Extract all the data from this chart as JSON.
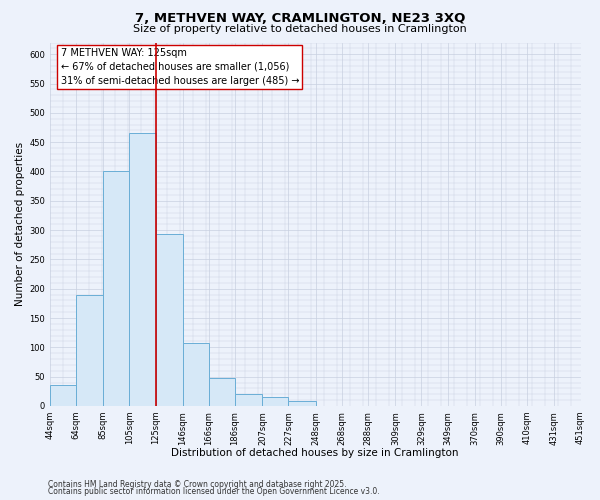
{
  "title_line1": "7, METHVEN WAY, CRAMLINGTON, NE23 3XQ",
  "title_line2": "Size of property relative to detached houses in Cramlington",
  "xlabel": "Distribution of detached houses by size in Cramlington",
  "ylabel": "Number of detached properties",
  "bin_edges": [
    44,
    64,
    85,
    105,
    125,
    146,
    166,
    186,
    207,
    227,
    248,
    268,
    288,
    309,
    329,
    349,
    370,
    390,
    410,
    431,
    451
  ],
  "bar_heights": [
    35,
    190,
    400,
    465,
    293,
    107,
    48,
    20,
    15,
    8,
    0,
    0,
    0,
    0,
    0,
    0,
    0,
    0,
    0,
    0
  ],
  "bar_color": "#d6e8f7",
  "bar_edge_color": "#6aaed6",
  "vline_x": 125,
  "vline_color": "#cc0000",
  "ylim": [
    0,
    620
  ],
  "yticks": [
    0,
    50,
    100,
    150,
    200,
    250,
    300,
    350,
    400,
    450,
    500,
    550,
    600
  ],
  "annotation_title": "7 METHVEN WAY: 125sqm",
  "annotation_line1": "← 67% of detached houses are smaller (1,056)",
  "annotation_line2": "31% of semi-detached houses are larger (485) →",
  "annotation_box_color": "#ffffff",
  "annotation_box_edge": "#cc0000",
  "background_color": "#edf2fb",
  "grid_color": "#c8d0e0",
  "footer_line1": "Contains HM Land Registry data © Crown copyright and database right 2025.",
  "footer_line2": "Contains public sector information licensed under the Open Government Licence v3.0.",
  "tick_labels": [
    "44sqm",
    "64sqm",
    "85sqm",
    "105sqm",
    "125sqm",
    "146sqm",
    "166sqm",
    "186sqm",
    "207sqm",
    "227sqm",
    "248sqm",
    "268sqm",
    "288sqm",
    "309sqm",
    "329sqm",
    "349sqm",
    "370sqm",
    "390sqm",
    "410sqm",
    "431sqm",
    "451sqm"
  ],
  "title_fontsize": 9.5,
  "subtitle_fontsize": 8,
  "axis_label_fontsize": 7.5,
  "tick_fontsize": 6,
  "annotation_fontsize": 7,
  "footer_fontsize": 5.5
}
